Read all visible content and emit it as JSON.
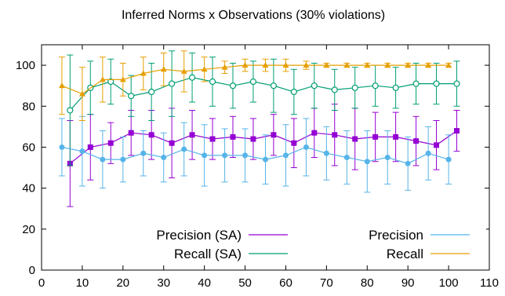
{
  "chart_data": {
    "type": "line",
    "title": "Inferred Norms x Observations (30% violations)",
    "xlabel": "",
    "ylabel": "",
    "xlim": [
      0,
      110
    ],
    "ylim": [
      0,
      110
    ],
    "xticks": [
      "0",
      "10",
      "20",
      "30",
      "40",
      "50",
      "60",
      "70",
      "80",
      "90",
      "100",
      "110"
    ],
    "yticks": [
      "0",
      "20",
      "40",
      "60",
      "80",
      "100"
    ],
    "grid": false,
    "legend": "bottom",
    "series": [
      {
        "name": "Precision (SA)",
        "color": "#9400d3",
        "marker": "filled-square",
        "x": [
          7,
          12,
          17,
          22,
          27,
          32,
          37,
          42,
          47,
          52,
          57,
          62,
          67,
          72,
          77,
          82,
          87,
          92,
          97,
          102
        ],
        "y": [
          52,
          60,
          62,
          67,
          66,
          62,
          66,
          64,
          65,
          64,
          66,
          62,
          67,
          66,
          64,
          65,
          65,
          63,
          61,
          68
        ],
        "err": [
          21,
          16,
          10,
          11,
          12,
          17,
          12,
          10,
          10,
          10,
          10,
          12,
          12,
          15,
          15,
          12,
          12,
          12,
          12,
          10
        ]
      },
      {
        "name": "Recall (SA)",
        "color": "#009e73",
        "marker": "open-circle",
        "x": [
          7,
          12,
          17,
          22,
          27,
          32,
          37,
          42,
          47,
          52,
          57,
          62,
          67,
          72,
          77,
          82,
          87,
          92,
          97,
          102
        ],
        "y": [
          78,
          89,
          92,
          85,
          87,
          91,
          94,
          92,
          90,
          92,
          90,
          87,
          90,
          88,
          89,
          90,
          89,
          91,
          91,
          91
        ],
        "err": [
          27,
          13,
          11,
          10,
          14,
          16,
          12,
          12,
          11,
          10,
          13,
          11,
          11,
          10,
          10,
          10,
          10,
          10,
          10,
          11
        ]
      },
      {
        "name": "Precision",
        "color": "#56b4e9",
        "marker": "filled-circle",
        "x": [
          5,
          10,
          15,
          20,
          25,
          30,
          35,
          40,
          45,
          50,
          55,
          60,
          65,
          70,
          75,
          80,
          85,
          90,
          95,
          100
        ],
        "y": [
          60,
          58,
          54,
          54,
          57,
          55,
          59,
          56,
          56,
          56,
          54,
          56,
          60,
          57,
          55,
          53,
          55,
          52,
          57,
          54
        ],
        "err": [
          14,
          17,
          14,
          11,
          11,
          12,
          13,
          15,
          13,
          13,
          12,
          15,
          14,
          13,
          13,
          15,
          13,
          13,
          13,
          12
        ]
      },
      {
        "name": "Recall",
        "color": "#e69f00",
        "marker": "filled-triangle",
        "x": [
          5,
          10,
          15,
          20,
          25,
          30,
          35,
          40,
          45,
          50,
          55,
          60,
          65,
          70,
          75,
          80,
          85,
          90,
          95,
          100
        ],
        "y": [
          90,
          86,
          93,
          93,
          96,
          98,
          97,
          98,
          99,
          100,
          100,
          100,
          100,
          100,
          100,
          100,
          100,
          100,
          100,
          100
        ],
        "err": [
          14,
          13,
          11,
          8,
          8,
          8,
          10,
          6,
          3,
          3,
          3,
          3,
          2,
          1,
          1,
          1,
          1,
          1,
          1,
          1
        ]
      }
    ]
  }
}
